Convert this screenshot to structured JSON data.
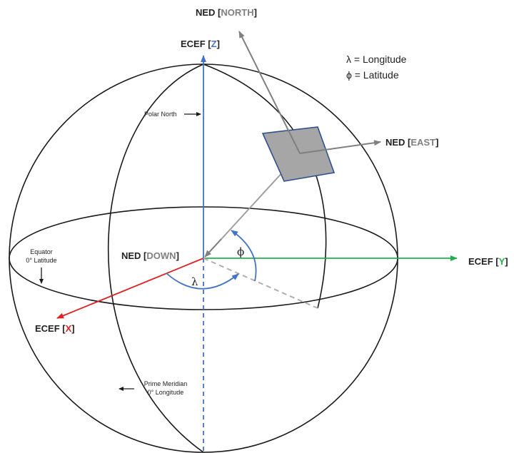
{
  "colors": {
    "x_axis": "#e02020",
    "y_axis": "#22b04c",
    "z_axis": "#4472c4",
    "ned_axes": "#808080",
    "outline": "#1a1a1a",
    "plane_fill": "#a6a6a6",
    "plane_stroke": "#2f4f8f",
    "angle_arc": "#4472c4"
  },
  "labels": {
    "ned_north": {
      "prefix": "NED [",
      "key": "NORTH",
      "suffix": "]"
    },
    "ecef_z": {
      "prefix": "ECEF [",
      "key": "Z",
      "suffix": "]"
    },
    "ned_east": {
      "prefix": "NED [",
      "key": "EAST",
      "suffix": "]"
    },
    "ned_down": {
      "prefix": "NED [",
      "key": "DOWN",
      "suffix": "]"
    },
    "ecef_y": {
      "prefix": "ECEF [",
      "key": "Y",
      "suffix": "]"
    },
    "ecef_x": {
      "prefix": "ECEF [",
      "key": "X",
      "suffix": "]"
    }
  },
  "legend": {
    "longitude": "λ = Longitude",
    "latitude": "ϕ = Latitude"
  },
  "annotations": {
    "polar_north": "Polar North",
    "equator_line1": "Equator",
    "equator_line2": "0° Latitude",
    "prime_meridian_line1": "Prime Meridian",
    "prime_meridian_line2": "0° Longitude"
  },
  "angles": {
    "lambda": "λ",
    "phi": "ϕ"
  }
}
